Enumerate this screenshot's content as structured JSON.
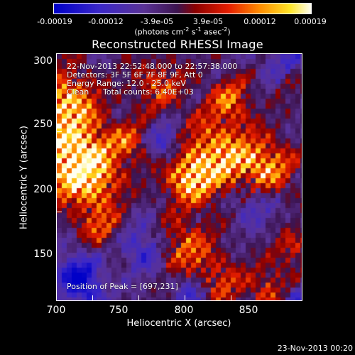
{
  "colorbar": {
    "ticks": [
      "-0.00019",
      "-0.00012",
      "-3.9e-05",
      "3.9e-05",
      "0.00012",
      "0.00019"
    ],
    "units_prefix": "(photons cm",
    "units_exp1": "-2",
    "units_mid": " s",
    "units_exp2": "-1",
    "units_mid2": " asec",
    "units_exp3": "-2",
    "units_suffix": ")"
  },
  "title": "Reconstructed RHESSI Image",
  "annotations": {
    "time_range": "22-Nov-2013 22:52:48.000 to 22:57:38.000",
    "detectors": "Detectors: 3F 5F 6F 7F 8F 9F, Att 0",
    "energy": "Energy Range: 12.0 - 25.0 keV",
    "clean_label": "Clean",
    "total_counts": "Total counts: 6.40E+03",
    "peak": "Position of Peak = [697,231]"
  },
  "axes": {
    "x_label": "Heliocentric X (arcsec)",
    "y_label": "Heliocentric Y (arcsec)",
    "x_ticks": [
      "700",
      "750",
      "800",
      "850"
    ],
    "y_ticks": [
      "300",
      "250",
      "200",
      "150"
    ]
  },
  "timestamp": "23-Nov-2013 00:20"
}
